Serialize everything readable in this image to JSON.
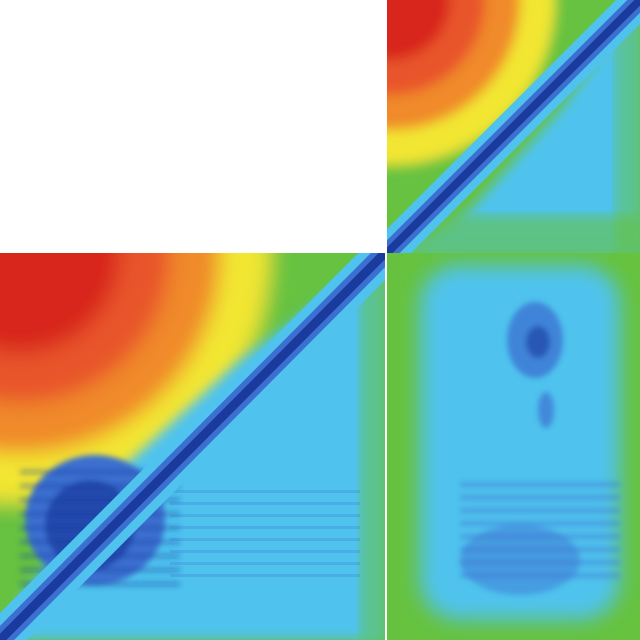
{
  "chart_data": {
    "type": "heatmap",
    "description_colormap": "jet",
    "colors": {
      "dark_blue": "#1a3a9e",
      "mid_blue": "#3b6fd0",
      "light_blue": "#4fc3ee",
      "cyan": "#4fd0dc",
      "green": "#66c23f",
      "yellow": "#f2e633",
      "orange": "#f08a2a",
      "red": "#d8261a",
      "background": "#ffffff"
    },
    "blocks": [
      {
        "name": "",
        "type": "square-matrix",
        "diagonal": "min",
        "far_corner": "max"
      },
      {
        "name": "",
        "type": "triangle",
        "diagonal": "min",
        "far_corner": "max"
      },
      {
        "name": "",
        "type": "rectangle",
        "level": "low"
      }
    ],
    "title": "",
    "xlabel": "",
    "ylabel": "",
    "legend": "none",
    "grid": false
  }
}
